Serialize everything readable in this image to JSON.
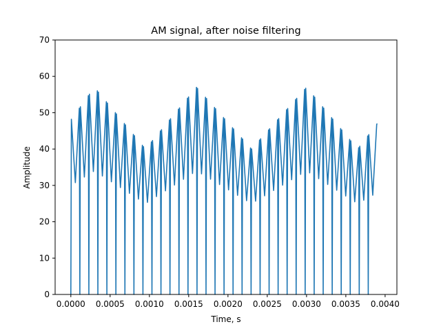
{
  "chart_data": {
    "type": "line",
    "title": "AM signal, after noise filtering",
    "xlabel": "Time, s",
    "ylabel": "Amplitude",
    "xlim": [
      -0.0002,
      0.00415
    ],
    "ylim": [
      0,
      70
    ],
    "x_ticks": [
      "0.0000",
      "0.0005",
      "0.0010",
      "0.0015",
      "0.0020",
      "0.0025",
      "0.0030",
      "0.0035",
      "0.0040"
    ],
    "y_ticks": [
      "0",
      "10",
      "20",
      "30",
      "40",
      "50",
      "60",
      "70"
    ],
    "grid": false,
    "legend": "none",
    "series": [
      {
        "color": "#1f77b4",
        "x_start": 0.0,
        "x_end": 0.0039,
        "dropout_count": 34,
        "dropout_value": 0,
        "upper_envelope": {
          "x": [
            0.0,
            0.0003,
            0.00095,
            0.0016,
            0.0023,
            0.003,
            0.00365,
            0.0039
          ],
          "y": [
            48,
            57,
            40,
            57,
            40,
            57,
            40,
            47
          ]
        },
        "lower_envelope": {
          "x": [
            0.0,
            0.0003,
            0.00095,
            0.0016,
            0.0023,
            0.003,
            0.00365,
            0.0039
          ],
          "y": [
            30,
            34,
            25,
            34,
            25,
            34,
            25,
            28
          ]
        }
      }
    ]
  }
}
